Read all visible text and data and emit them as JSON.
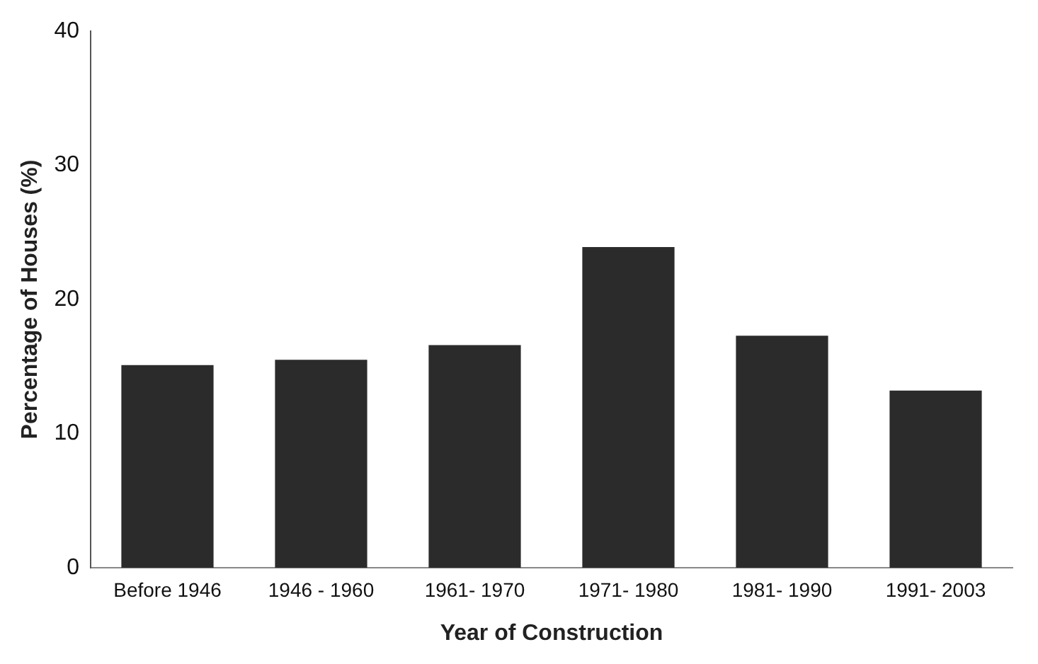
{
  "chart_data": {
    "type": "bar",
    "xlabel": "Year of Construction",
    "ylabel": "Percentage of Houses (%)",
    "categories": [
      "Before 1946",
      "1946 - 1960",
      "1961- 1970",
      "1971- 1980",
      "1981- 1990",
      "1991- 2003"
    ],
    "values": [
      15.1,
      15.5,
      16.6,
      23.9,
      17.3,
      13.2
    ],
    "color": "#2b2b2b",
    "ylim": [
      0,
      40
    ],
    "yticks": [
      0,
      10,
      20,
      30,
      40
    ],
    "grid": false,
    "legend": false
  }
}
